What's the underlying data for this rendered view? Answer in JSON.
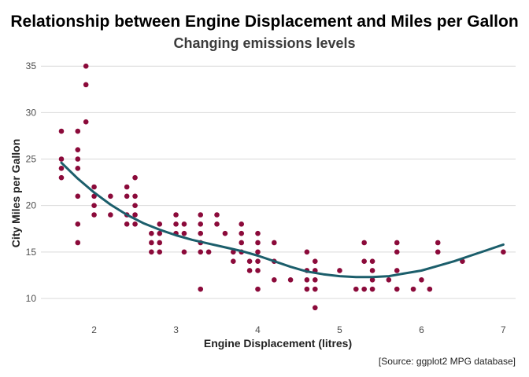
{
  "chart_data": {
    "type": "scatter",
    "title": "Relationship between Engine Displacement and Miles per Gallon",
    "subtitle": "Changing emissions levels",
    "xlabel": "Engine Displacement (litres)",
    "ylabel": "City Miles per Gallon",
    "caption": "[Source: ggplot2 MPG database]",
    "xlim": [
      1.35,
      7.15
    ],
    "ylim": [
      7.8,
      36.2
    ],
    "x_ticks": [
      2,
      3,
      4,
      5,
      6,
      7
    ],
    "y_ticks": [
      10,
      15,
      20,
      25,
      30,
      35
    ],
    "grid": "horizontal-major",
    "legend": "none",
    "colors": {
      "points": "#8b0a3a",
      "trend": "#1b5e6b",
      "grid": "#d9d9d9"
    },
    "series": [
      {
        "type": "scatter",
        "points": [
          [
            1.6,
            28
          ],
          [
            1.6,
            25
          ],
          [
            1.6,
            24
          ],
          [
            1.6,
            23
          ],
          [
            1.8,
            28
          ],
          [
            1.8,
            26
          ],
          [
            1.8,
            25
          ],
          [
            1.8,
            24
          ],
          [
            1.8,
            21
          ],
          [
            1.8,
            18
          ],
          [
            1.8,
            16
          ],
          [
            1.9,
            35
          ],
          [
            1.9,
            33
          ],
          [
            1.9,
            29
          ],
          [
            2.0,
            22
          ],
          [
            2.0,
            21
          ],
          [
            2.0,
            20
          ],
          [
            2.0,
            19
          ],
          [
            2.2,
            21
          ],
          [
            2.2,
            19
          ],
          [
            2.4,
            22
          ],
          [
            2.4,
            21
          ],
          [
            2.4,
            19
          ],
          [
            2.4,
            18
          ],
          [
            2.5,
            23
          ],
          [
            2.5,
            21
          ],
          [
            2.5,
            20
          ],
          [
            2.5,
            19
          ],
          [
            2.5,
            18
          ],
          [
            2.7,
            17
          ],
          [
            2.7,
            16
          ],
          [
            2.7,
            15
          ],
          [
            2.8,
            18
          ],
          [
            2.8,
            17
          ],
          [
            2.8,
            16
          ],
          [
            2.8,
            15
          ],
          [
            3.0,
            19
          ],
          [
            3.0,
            18
          ],
          [
            3.0,
            17
          ],
          [
            3.1,
            18
          ],
          [
            3.1,
            17
          ],
          [
            3.1,
            15
          ],
          [
            3.3,
            19
          ],
          [
            3.3,
            18
          ],
          [
            3.3,
            17
          ],
          [
            3.3,
            16
          ],
          [
            3.3,
            15
          ],
          [
            3.3,
            11
          ],
          [
            3.4,
            15
          ],
          [
            3.5,
            19
          ],
          [
            3.5,
            18
          ],
          [
            3.6,
            17
          ],
          [
            3.7,
            15
          ],
          [
            3.7,
            14
          ],
          [
            3.8,
            18
          ],
          [
            3.8,
            17
          ],
          [
            3.8,
            16
          ],
          [
            3.8,
            15
          ],
          [
            3.9,
            14
          ],
          [
            3.9,
            13
          ],
          [
            4.0,
            17
          ],
          [
            4.0,
            16
          ],
          [
            4.0,
            15
          ],
          [
            4.0,
            14
          ],
          [
            4.0,
            13
          ],
          [
            4.0,
            11
          ],
          [
            4.2,
            16
          ],
          [
            4.2,
            14
          ],
          [
            4.2,
            12
          ],
          [
            4.4,
            12
          ],
          [
            4.6,
            15
          ],
          [
            4.6,
            13
          ],
          [
            4.6,
            12
          ],
          [
            4.6,
            11
          ],
          [
            4.7,
            14
          ],
          [
            4.7,
            13
          ],
          [
            4.7,
            12
          ],
          [
            4.7,
            11
          ],
          [
            4.7,
            9
          ],
          [
            5.0,
            13
          ],
          [
            5.2,
            11
          ],
          [
            5.3,
            16
          ],
          [
            5.3,
            14
          ],
          [
            5.3,
            11
          ],
          [
            5.4,
            14
          ],
          [
            5.4,
            13
          ],
          [
            5.4,
            12
          ],
          [
            5.4,
            11
          ],
          [
            5.6,
            12
          ],
          [
            5.7,
            16
          ],
          [
            5.7,
            15
          ],
          [
            5.7,
            13
          ],
          [
            5.7,
            11
          ],
          [
            5.9,
            11
          ],
          [
            6.0,
            12
          ],
          [
            6.1,
            11
          ],
          [
            6.2,
            16
          ],
          [
            6.2,
            15
          ],
          [
            6.5,
            14
          ],
          [
            7.0,
            15
          ]
        ]
      },
      {
        "type": "smooth",
        "name": "",
        "x": [
          1.6,
          1.8,
          2.0,
          2.2,
          2.4,
          2.6,
          2.8,
          3.0,
          3.2,
          3.4,
          3.6,
          3.8,
          4.0,
          4.2,
          4.4,
          4.6,
          4.8,
          5.0,
          5.2,
          5.4,
          5.6,
          5.8,
          6.0,
          6.2,
          6.4,
          6.6,
          6.8,
          7.0
        ],
        "y": [
          24.6,
          22.9,
          21.4,
          20.1,
          19.0,
          18.1,
          17.4,
          16.8,
          16.3,
          15.9,
          15.5,
          15.1,
          14.6,
          14.0,
          13.4,
          12.9,
          12.6,
          12.4,
          12.3,
          12.3,
          12.4,
          12.7,
          13.0,
          13.5,
          14.0,
          14.6,
          15.2,
          15.8
        ]
      }
    ]
  }
}
